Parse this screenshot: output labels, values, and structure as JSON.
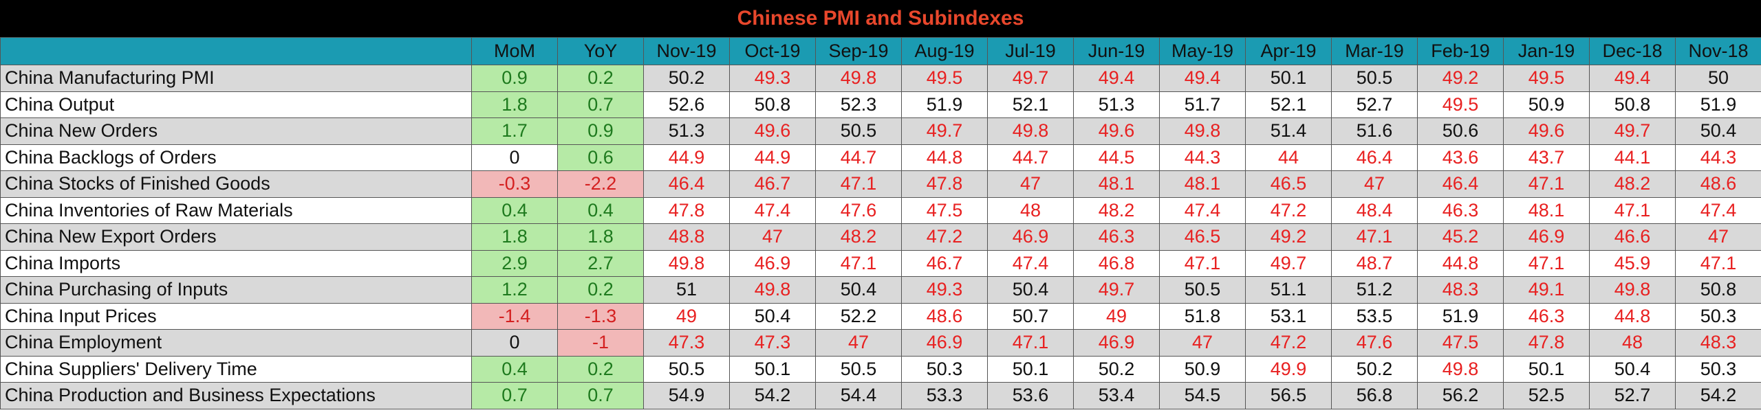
{
  "title": "Chinese PMI and Subindexes",
  "colors": {
    "title_text": "#e8472c",
    "header_bg": "#1b9bb2",
    "positive_bg": "#b6eaa6",
    "negative_bg": "#f2b8b8",
    "below_50_text": "#e82020"
  },
  "columns": [
    "",
    "MoM",
    "YoY",
    "Nov-19",
    "Oct-19",
    "Sep-19",
    "Aug-19",
    "Jul-19",
    "Jun-19",
    "May-19",
    "Apr-19",
    "Mar-19",
    "Feb-19",
    "Jan-19",
    "Dec-18",
    "Nov-18"
  ],
  "rows": [
    {
      "name": "China Manufacturing PMI",
      "mom": "0.9",
      "yoy": "0.2",
      "values": [
        "50.2",
        "49.3",
        "49.8",
        "49.5",
        "49.7",
        "49.4",
        "49.4",
        "50.1",
        "50.5",
        "49.2",
        "49.5",
        "49.4",
        "50"
      ]
    },
    {
      "name": "China Output",
      "mom": "1.8",
      "yoy": "0.7",
      "values": [
        "52.6",
        "50.8",
        "52.3",
        "51.9",
        "52.1",
        "51.3",
        "51.7",
        "52.1",
        "52.7",
        "49.5",
        "50.9",
        "50.8",
        "51.9"
      ]
    },
    {
      "name": "China New Orders",
      "mom": "1.7",
      "yoy": "0.9",
      "values": [
        "51.3",
        "49.6",
        "50.5",
        "49.7",
        "49.8",
        "49.6",
        "49.8",
        "51.4",
        "51.6",
        "50.6",
        "49.6",
        "49.7",
        "50.4"
      ]
    },
    {
      "name": "China Backlogs of Orders",
      "mom": "0",
      "yoy": "0.6",
      "values": [
        "44.9",
        "44.9",
        "44.7",
        "44.8",
        "44.7",
        "44.5",
        "44.3",
        "44",
        "46.4",
        "43.6",
        "43.7",
        "44.1",
        "44.3"
      ]
    },
    {
      "name": "China Stocks of Finished Goods",
      "mom": "-0.3",
      "yoy": "-2.2",
      "values": [
        "46.4",
        "46.7",
        "47.1",
        "47.8",
        "47",
        "48.1",
        "48.1",
        "46.5",
        "47",
        "46.4",
        "47.1",
        "48.2",
        "48.6"
      ]
    },
    {
      "name": "China Inventories of Raw Materials",
      "mom": "0.4",
      "yoy": "0.4",
      "values": [
        "47.8",
        "47.4",
        "47.6",
        "47.5",
        "48",
        "48.2",
        "47.4",
        "47.2",
        "48.4",
        "46.3",
        "48.1",
        "47.1",
        "47.4"
      ]
    },
    {
      "name": "China New Export Orders",
      "mom": "1.8",
      "yoy": "1.8",
      "values": [
        "48.8",
        "47",
        "48.2",
        "47.2",
        "46.9",
        "46.3",
        "46.5",
        "49.2",
        "47.1",
        "45.2",
        "46.9",
        "46.6",
        "47"
      ]
    },
    {
      "name": "China Imports",
      "mom": "2.9",
      "yoy": "2.7",
      "values": [
        "49.8",
        "46.9",
        "47.1",
        "46.7",
        "47.4",
        "46.8",
        "47.1",
        "49.7",
        "48.7",
        "44.8",
        "47.1",
        "45.9",
        "47.1"
      ]
    },
    {
      "name": "China Purchasing of Inputs",
      "mom": "1.2",
      "yoy": "0.2",
      "values": [
        "51",
        "49.8",
        "50.4",
        "49.3",
        "50.4",
        "49.7",
        "50.5",
        "51.1",
        "51.2",
        "48.3",
        "49.1",
        "49.8",
        "50.8"
      ]
    },
    {
      "name": "China Input Prices",
      "mom": "-1.4",
      "yoy": "-1.3",
      "values": [
        "49",
        "50.4",
        "52.2",
        "48.6",
        "50.7",
        "49",
        "51.8",
        "53.1",
        "53.5",
        "51.9",
        "46.3",
        "44.8",
        "50.3"
      ]
    },
    {
      "name": "China Employment",
      "mom": "0",
      "yoy": "-1",
      "values": [
        "47.3",
        "47.3",
        "47",
        "46.9",
        "47.1",
        "46.9",
        "47",
        "47.2",
        "47.6",
        "47.5",
        "47.8",
        "48",
        "48.3"
      ]
    },
    {
      "name": "China Suppliers' Delivery Time",
      "mom": "0.4",
      "yoy": "0.2",
      "values": [
        "50.5",
        "50.1",
        "50.5",
        "50.3",
        "50.1",
        "50.2",
        "50.9",
        "49.9",
        "50.2",
        "49.8",
        "50.1",
        "50.4",
        "50.3"
      ]
    },
    {
      "name": "China Production and Business Expectations",
      "mom": "0.7",
      "yoy": "0.7",
      "values": [
        "54.9",
        "54.2",
        "54.4",
        "53.3",
        "53.6",
        "53.4",
        "54.5",
        "56.5",
        "56.8",
        "56.2",
        "52.5",
        "52.7",
        "54.2"
      ]
    }
  ]
}
